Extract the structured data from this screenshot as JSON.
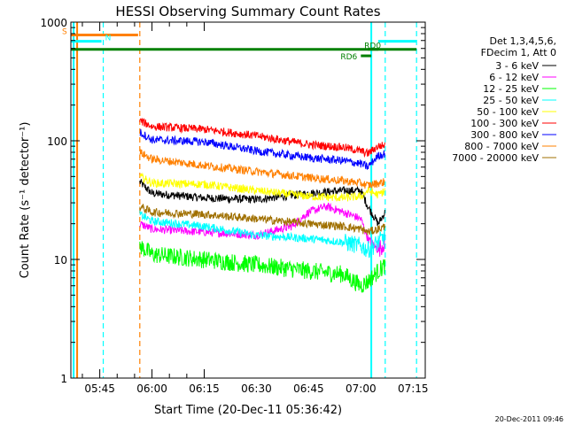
{
  "chart_data": {
    "type": "line",
    "title": "HESSI Observing Summary Count Rates",
    "xlabel": "Start Time (20-Dec-11 05:36:42)",
    "ylabel": "Count Rate (s⁻¹ detector⁻¹)",
    "y_scale": "log",
    "ylim": [
      1,
      1000
    ],
    "xlim": [
      "05:36:42",
      "07:18:30"
    ],
    "grid": false,
    "legend_position": "right",
    "x_ticks": [
      "05:45",
      "06:00",
      "06:15",
      "06:30",
      "06:45",
      "07:00",
      "07:15"
    ],
    "y_ticks": [
      "1",
      "10",
      "100",
      "1000"
    ],
    "legend_header": [
      "Det 1,3,4,5,6,",
      "FDecim 1, Att 0"
    ],
    "series": [
      {
        "name": "3 - 6 keV",
        "color": "#000000",
        "x": [
          "05:56:30",
          "06:00",
          "06:15",
          "06:30",
          "06:45",
          "06:55",
          "07:00",
          "07:02",
          "07:05",
          "07:07"
        ],
        "values": [
          45,
          36,
          33,
          32,
          36,
          38,
          38,
          28,
          20,
          25
        ]
      },
      {
        "name": "6 - 12 keV",
        "color": "#ff00ff",
        "x": [
          "05:56:30",
          "06:00",
          "06:15",
          "06:30",
          "06:40",
          "06:45",
          "06:50",
          "06:55",
          "07:00",
          "07:02",
          "07:05",
          "07:07"
        ],
        "values": [
          20,
          18,
          17,
          16,
          19,
          25,
          28,
          25,
          22,
          15,
          12,
          14
        ]
      },
      {
        "name": "12 - 25 keV",
        "color": "#00ff00",
        "x": [
          "05:56:30",
          "06:00",
          "06:15",
          "06:30",
          "06:45",
          "06:55",
          "07:00",
          "07:02",
          "07:05",
          "07:07"
        ],
        "values": [
          13,
          11,
          10,
          9,
          8,
          7.5,
          6,
          6.5,
          8,
          9
        ]
      },
      {
        "name": "25 - 50 keV",
        "color": "#00ffff",
        "x": [
          "05:56:30",
          "06:00",
          "06:15",
          "06:30",
          "06:45",
          "06:55",
          "07:00",
          "07:02",
          "07:05",
          "07:07"
        ],
        "values": [
          24,
          21,
          19,
          16,
          15,
          14,
          13,
          12,
          14,
          16
        ]
      },
      {
        "name": "50 - 100 keV",
        "color": "#ffff00",
        "x": [
          "05:56:30",
          "06:00",
          "06:15",
          "06:30",
          "06:45",
          "06:55",
          "07:00",
          "07:02",
          "07:05",
          "07:07"
        ],
        "values": [
          50,
          44,
          43,
          38,
          34,
          33,
          34,
          38,
          35,
          38
        ]
      },
      {
        "name": "100 - 300 keV",
        "color": "#ff0000",
        "x": [
          "05:56:30",
          "06:00",
          "06:15",
          "06:30",
          "06:45",
          "06:55",
          "07:00",
          "07:02",
          "07:05",
          "07:07"
        ],
        "values": [
          148,
          132,
          125,
          110,
          93,
          88,
          82,
          78,
          90,
          92
        ]
      },
      {
        "name": "300 - 800 keV",
        "color": "#0000ff",
        "x": [
          "05:56:30",
          "06:00",
          "06:15",
          "06:30",
          "06:45",
          "06:55",
          "07:00",
          "07:02",
          "07:05",
          "07:07"
        ],
        "values": [
          118,
          102,
          98,
          82,
          72,
          68,
          64,
          60,
          75,
          78
        ]
      },
      {
        "name": "800 - 7000 keV",
        "color": "#ff8000",
        "x": [
          "05:56:30",
          "06:00",
          "06:15",
          "06:30",
          "06:45",
          "06:55",
          "07:00",
          "07:02",
          "07:05",
          "07:07"
        ],
        "values": [
          80,
          70,
          62,
          55,
          49,
          46,
          44,
          42,
          44,
          45
        ]
      },
      {
        "name": "7000 - 20000 keV",
        "color": "#a07000",
        "x": [
          "05:56:30",
          "06:00",
          "06:15",
          "06:30",
          "06:45",
          "06:55",
          "07:00",
          "07:02",
          "07:05",
          "07:07"
        ],
        "values": [
          28,
          25,
          24,
          22,
          20,
          19,
          18,
          17,
          18,
          19
        ]
      }
    ],
    "flags": [
      {
        "label": "S",
        "color": "#ff8000",
        "x": [
          "05:36:42",
          "05:56:00"
        ],
        "y": 780
      },
      {
        "label": "N",
        "color": "#00ffff",
        "x": [
          "05:36:42",
          "05:45:30"
        ],
        "y": 690
      },
      {
        "label": "",
        "color": "#00ffff",
        "x": [
          "07:05:00",
          "07:16:00"
        ],
        "y": 690
      },
      {
        "label": "",
        "color": "#008000",
        "x": [
          "05:36:42",
          "07:16:00"
        ],
        "y": 590
      },
      {
        "label": "RD0",
        "color": "#008000",
        "x": [
          "07:02:00",
          "07:05:00"
        ],
        "y": 590
      },
      {
        "label": "RD6",
        "color": "#008000",
        "x": [
          "07:00:00",
          "07:03:00"
        ],
        "y": 520
      }
    ],
    "vertical_lines": [
      {
        "x": "05:37:30",
        "color": "#00ffff",
        "style": "solid"
      },
      {
        "x": "05:38:30",
        "color": "#ff8000",
        "style": "solid"
      },
      {
        "x": "05:46:00",
        "color": "#00ffff",
        "style": "dashed"
      },
      {
        "x": "05:56:30",
        "color": "#ff8000",
        "style": "dashed"
      },
      {
        "x": "07:03:00",
        "color": "#00ffff",
        "style": "solid"
      },
      {
        "x": "07:07:00",
        "color": "#00ffff",
        "style": "dashed"
      },
      {
        "x": "07:16:00",
        "color": "#00ffff",
        "style": "dashed"
      }
    ],
    "footer": "20-Dec-2011 09:46"
  }
}
